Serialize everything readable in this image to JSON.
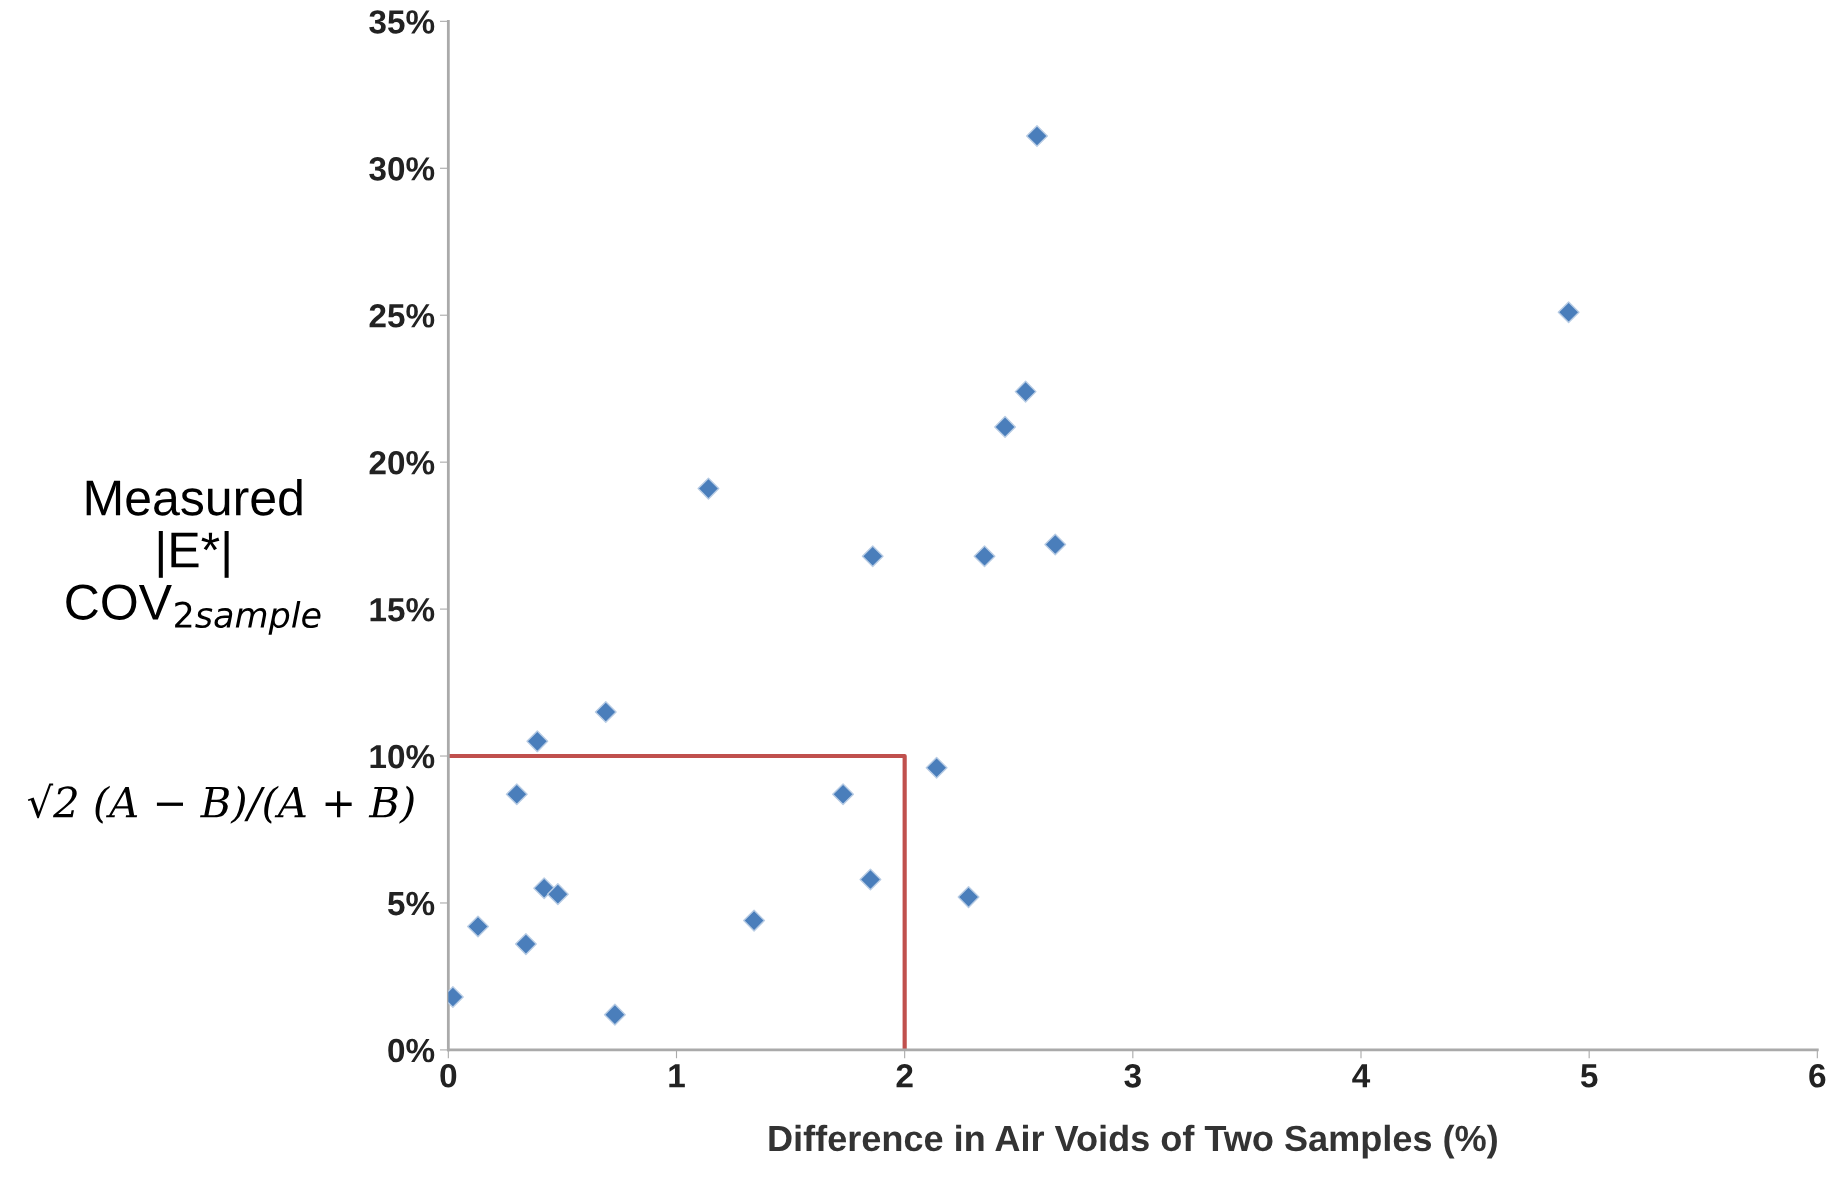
{
  "chart_data": {
    "type": "scatter",
    "xlabel": "Difference in Air Voids of Two Samples (%)",
    "ylabel": "Measured\n|E*|\nCOV$_{2sample}$",
    "annotations": [
      "√2 (A − B)/(A + B)"
    ],
    "xlim": [
      0,
      6
    ],
    "xticks": [
      0,
      1,
      2,
      3,
      4,
      5,
      6
    ],
    "ylim": [
      0,
      35
    ],
    "yticks": [
      {
        "value": 0,
        "label": "0%"
      },
      {
        "value": 5,
        "label": "5%"
      },
      {
        "value": 10,
        "label": "10%"
      },
      {
        "value": 15,
        "label": "15%"
      },
      {
        "value": 20,
        "label": "20%"
      },
      {
        "value": 25,
        "label": "25%"
      },
      {
        "value": 30,
        "label": "30%"
      },
      {
        "value": 35,
        "label": "35%"
      }
    ],
    "grid": false,
    "marker": "diamond",
    "legend": false,
    "series": [
      {
        "color": "#4a7ebb",
        "x": [
          0.02,
          0.13,
          0.34,
          0.3,
          0.39,
          0.42,
          0.48,
          0.69,
          0.73,
          1.14,
          1.34,
          1.73,
          1.85,
          1.86,
          2.14,
          2.28,
          2.35,
          2.44,
          2.53,
          2.58,
          2.66,
          4.91
        ],
        "values": [
          1.8,
          4.2,
          3.6,
          8.7,
          10.5,
          5.5,
          5.3,
          11.5,
          1.2,
          19.1,
          4.4,
          8.7,
          5.8,
          16.8,
          9.6,
          5.2,
          16.8,
          21.2,
          22.4,
          31.1,
          17.2,
          25.1
        ]
      },
      {
        "type": "line",
        "marker": "none",
        "color": "#c0504d",
        "x": [
          0,
          2,
          2
        ],
        "values": [
          10,
          10,
          0
        ]
      }
    ]
  }
}
